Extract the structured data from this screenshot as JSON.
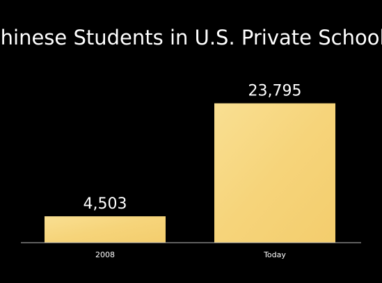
{
  "chart_data": {
    "type": "bar",
    "title": "Chinese Students in U.S. Private Schools",
    "categories": [
      "2008",
      "Today"
    ],
    "values": [
      4503,
      23795
    ],
    "data_labels": [
      "4,503",
      "23,795"
    ],
    "xlabel": "",
    "ylabel": "",
    "ylim": [
      0,
      26000
    ],
    "grid": false,
    "legend": "none",
    "bar_color": "#f7d57c",
    "background_color": "#000000",
    "axis_color": "#bfbfbf",
    "text_color": "#ffffff"
  }
}
